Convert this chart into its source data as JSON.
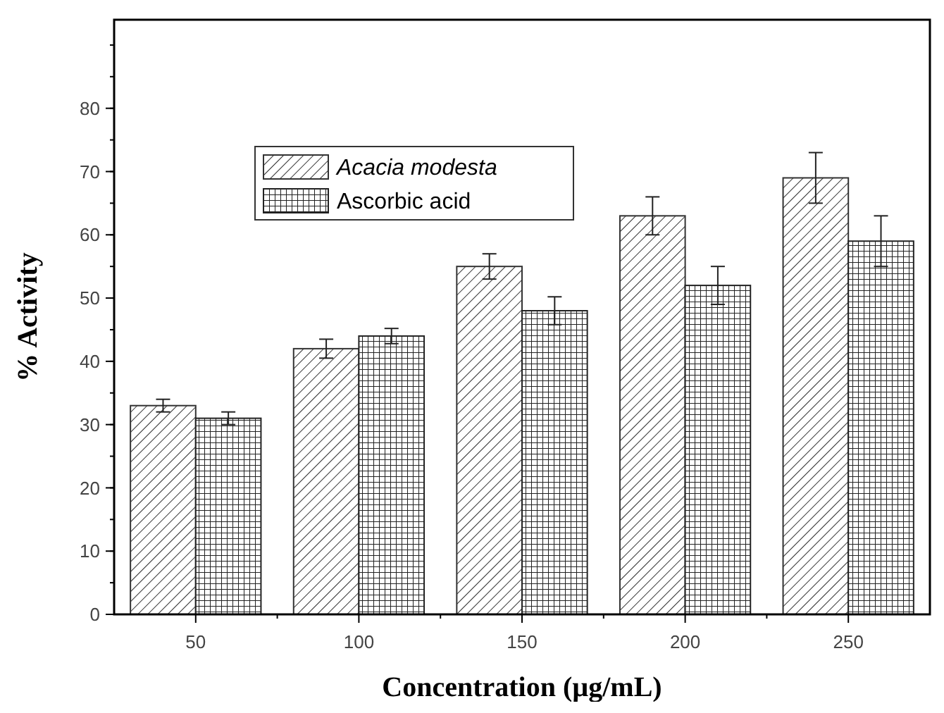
{
  "chart_data": {
    "type": "bar",
    "xlabel": "Concentration (µg/mL)",
    "ylabel": "% Activity",
    "categories": [
      "50",
      "100",
      "150",
      "200",
      "250"
    ],
    "series": [
      {
        "name": "Acacia modesta",
        "color": "#333333",
        "values": [
          33,
          42,
          55,
          63,
          69
        ],
        "errors": [
          1,
          1.5,
          2,
          3,
          4
        ]
      },
      {
        "name": "Ascorbic acid",
        "color": "#222222",
        "values": [
          31,
          44,
          48,
          52,
          59
        ],
        "errors": [
          1,
          1.2,
          2.2,
          3,
          4
        ]
      }
    ],
    "ylim": [
      0,
      94
    ],
    "yticks": [
      0,
      10,
      20,
      30,
      40,
      50,
      60,
      70,
      80
    ],
    "grid": false,
    "legend": "top left"
  }
}
